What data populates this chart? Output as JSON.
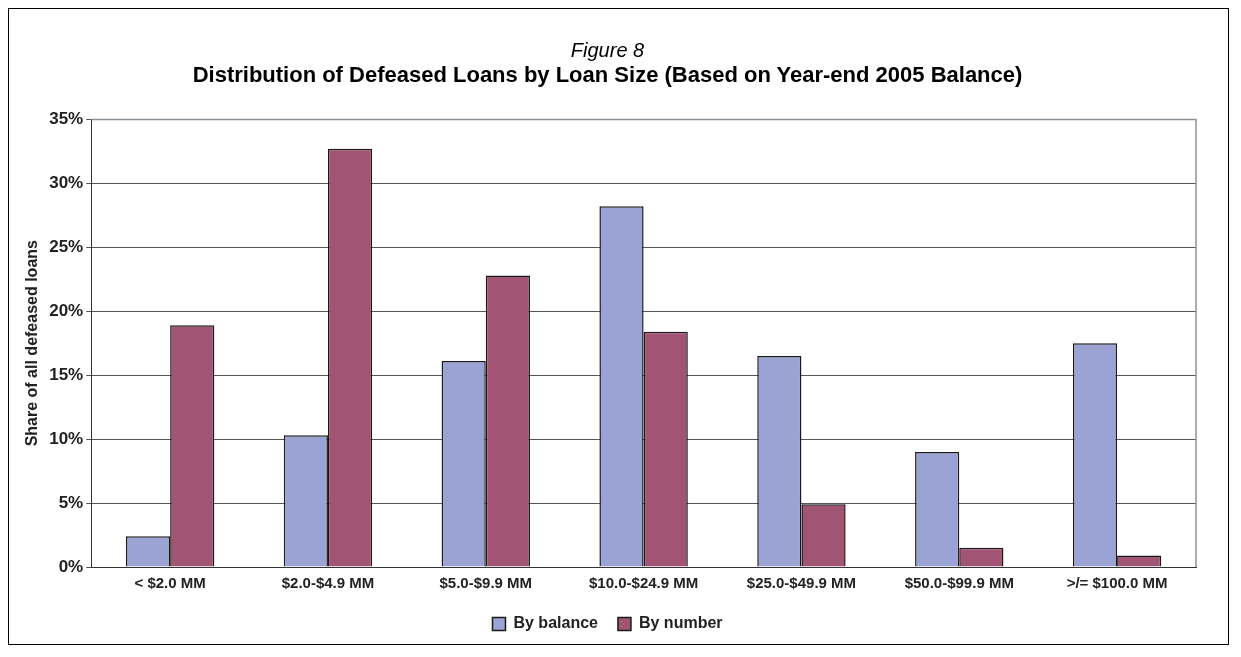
{
  "chart_data": {
    "type": "bar",
    "title": "Figure 8",
    "subtitle": "Distribution of Defeased Loans by Loan Size (Based on Year-end 2005 Balance)",
    "ylabel": "Share of all defeased loans",
    "categories": [
      "< $2.0 MM",
      "$2.0-$4.9 MM",
      "$5.0-$9.9 MM",
      "$10.0-$24.9 MM",
      "$25.0-$49.9 MM",
      "$50.0-$99.9 MM",
      ">/= $100.0 MM"
    ],
    "series": [
      {
        "name": "By balance",
        "color": "#9aa3d4",
        "values": [
          2.4,
          10.3,
          16.1,
          28.2,
          16.5,
          9.0,
          17.5
        ]
      },
      {
        "name": "By number",
        "color": "#a25475",
        "values": [
          18.9,
          32.7,
          22.8,
          18.4,
          4.9,
          1.5,
          0.9
        ]
      }
    ],
    "ylim": [
      0,
      35
    ],
    "yticks": [
      {
        "value": 0,
        "label": "0%"
      },
      {
        "value": 5,
        "label": "5%"
      },
      {
        "value": 10,
        "label": "10%"
      },
      {
        "value": 15,
        "label": "15%"
      },
      {
        "value": 20,
        "label": "20%"
      },
      {
        "value": 25,
        "label": "25%"
      },
      {
        "value": 30,
        "label": "30%"
      },
      {
        "value": 35,
        "label": "35%"
      }
    ],
    "grid": "y",
    "legend": "bottom"
  }
}
